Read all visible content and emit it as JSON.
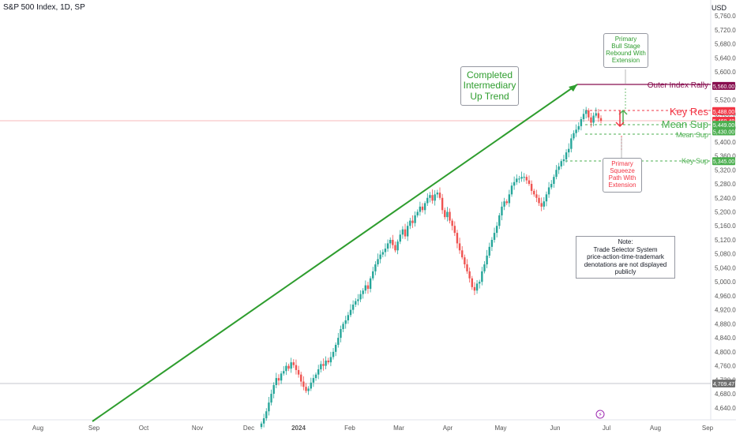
{
  "header": {
    "title": "S&P 500 Index, 1D, SP",
    "currency": "USD"
  },
  "chart_data": {
    "type": "candlestick",
    "title": "S&P 500 Index, 1D, SP",
    "x_ticks": [
      "Aug",
      "Sep",
      "Oct",
      "Nov",
      "Dec",
      "2024",
      "Feb",
      "Mar",
      "Apr",
      "May",
      "Jun",
      "Jul",
      "Aug",
      "Sep"
    ],
    "y_ticks": [
      4640,
      4680,
      4720,
      4760,
      4800,
      4840,
      4880,
      4920,
      4960,
      5000,
      5040,
      5080,
      5120,
      5160,
      5200,
      5240,
      5280,
      5320,
      5360,
      5400,
      5440,
      5480,
      5520,
      5560,
      5600,
      5640,
      5680,
      5720,
      5760
    ],
    "ylim": [
      4600,
      5775
    ],
    "closes": [
      4595,
      4610,
      4630,
      4655,
      4680,
      4705,
      4725,
      4718,
      4738,
      4745,
      4760,
      4752,
      4770,
      4762,
      4748,
      4735,
      4715,
      4700,
      4688,
      4695,
      4712,
      4725,
      4735,
      4750,
      4765,
      4760,
      4775,
      4770,
      4785,
      4800,
      4820,
      4840,
      4865,
      4880,
      4890,
      4905,
      4920,
      4935,
      4945,
      4950,
      4965,
      4975,
      4990,
      4980,
      5010,
      5030,
      5050,
      5065,
      5078,
      5085,
      5095,
      5110,
      5120,
      5105,
      5090,
      5115,
      5135,
      5150,
      5130,
      5160,
      5175,
      5168,
      5190,
      5200,
      5215,
      5205,
      5225,
      5240,
      5248,
      5232,
      5250,
      5255,
      5240,
      5205,
      5185,
      5200,
      5175,
      5160,
      5140,
      5110,
      5090,
      5070,
      5050,
      5030,
      5010,
      4985,
      4975,
      4995,
      5000,
      5030,
      5050,
      5075,
      5100,
      5120,
      5140,
      5160,
      5190,
      5215,
      5230,
      5225,
      5250,
      5275,
      5285,
      5295,
      5295,
      5300,
      5300,
      5290,
      5280,
      5260,
      5250,
      5240,
      5225,
      5215,
      5230,
      5250,
      5270,
      5280,
      5300,
      5320,
      5330,
      5345,
      5350,
      5370,
      5380,
      5410,
      5425,
      5435,
      5445,
      5465,
      5480,
      5490,
      5470,
      5455,
      5475,
      5482,
      5468,
      5460
    ],
    "current_price": "5,460.48",
    "price_tags": [
      {
        "value": 5560,
        "text": "5,560.00",
        "color": "#880e4f"
      },
      {
        "value": 5488,
        "text": "5,488.00",
        "color": "#f23645"
      },
      {
        "value": 5460.48,
        "text": "5,460.48",
        "color": "#f23645"
      },
      {
        "value": 5449,
        "text": "5,449.00",
        "color": "#4caf50"
      },
      {
        "value": 5430,
        "text": "5,430.00",
        "color": "#4caf50"
      },
      {
        "value": 5345,
        "text": "5,345.00",
        "color": "#4caf50"
      },
      {
        "value": 4709.47,
        "text": "4,709.47",
        "color": "#707070"
      }
    ],
    "level_labels": {
      "outer_rally": "Outer Index Rally",
      "key_res": "Key Res",
      "mean_sup_1": "Mean Sup",
      "mean_sup_2": "Mean Sup",
      "key_sup": "Key Sup"
    },
    "annotations": {
      "trend": [
        "Completed",
        "Intermediary",
        "Up Trend"
      ],
      "bull": [
        "Primary",
        "Bull Stage",
        "Rebound With",
        "Extension"
      ],
      "squeeze": [
        "Primary",
        "Squeeze",
        "Path With",
        "Extension"
      ],
      "note": [
        "Note:",
        "Trade Selector System",
        "price-action-time-trademark",
        "denotations are not displayed publicly"
      ]
    },
    "colors": {
      "up": "#26a69a",
      "down": "#ef5350",
      "trend": "#2e9d2e",
      "outer": "#880e4f",
      "res": "#f23645",
      "sup": "#4caf50",
      "event": "#9c27b0"
    }
  }
}
